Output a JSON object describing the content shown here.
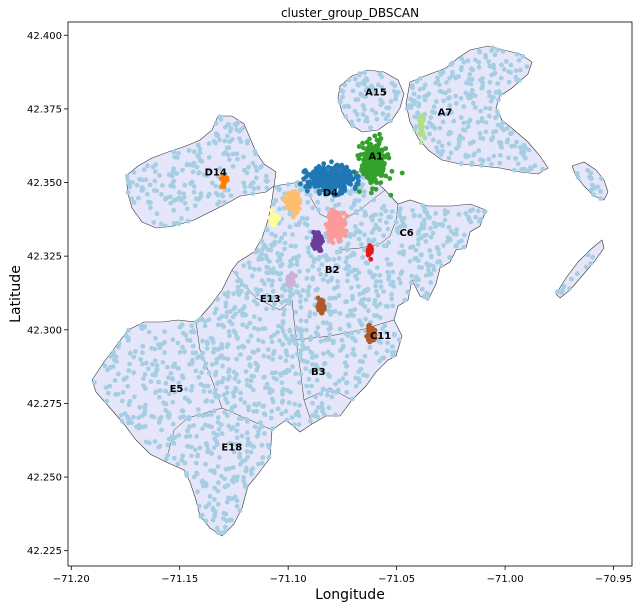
{
  "chart_data": {
    "type": "scatter",
    "title": "cluster_group_DBSCAN",
    "xlabel": "Longitude",
    "ylabel": "Latitude",
    "xlim": [
      -71.2015,
      -70.9415
    ],
    "ylim": [
      42.2198,
      42.4045
    ],
    "x_ticks": [
      -71.2,
      -71.15,
      -71.1,
      -71.05,
      -71.0,
      -70.95
    ],
    "x_tick_labels": [
      "−71.20",
      "−71.15",
      "−71.10",
      "−71.05",
      "−71.00",
      "−70.95"
    ],
    "y_ticks": [
      42.225,
      42.25,
      42.275,
      42.3,
      42.325,
      42.35,
      42.375,
      42.4
    ],
    "y_tick_labels": [
      "42.225",
      "42.250",
      "42.275",
      "42.300",
      "42.325",
      "42.350",
      "42.375",
      "42.400"
    ],
    "grid": false,
    "background_color": "#a6cee3",
    "district_fill": "#e6e6fa",
    "district_edge": "#333333",
    "district_labels": [
      {
        "name": "A15",
        "lon": -71.0595,
        "lat": 42.3795
      },
      {
        "name": "A7",
        "lon": -71.0277,
        "lat": 42.3727
      },
      {
        "name": "A1",
        "lon": -71.0596,
        "lat": 42.3578
      },
      {
        "name": "D14",
        "lon": -71.1334,
        "lat": 42.3524
      },
      {
        "name": "D4",
        "lon": -71.0805,
        "lat": 42.3455
      },
      {
        "name": "C6",
        "lon": -71.0454,
        "lat": 42.3319
      },
      {
        "name": "B2",
        "lon": -71.0797,
        "lat": 42.3193
      },
      {
        "name": "E13",
        "lon": -71.1083,
        "lat": 42.3095
      },
      {
        "name": "C11",
        "lon": -71.0574,
        "lat": 42.2968
      },
      {
        "name": "B3",
        "lon": -71.0861,
        "lat": 42.2847
      },
      {
        "name": "E5",
        "lon": -71.1515,
        "lat": 42.2789
      },
      {
        "name": "E18",
        "lon": -71.126,
        "lat": 42.259
      }
    ],
    "clusters": [
      {
        "id": "A1",
        "color": "#33a02c",
        "center": [
          -71.0604,
          42.3565
        ],
        "spread": [
          0.0055,
          0.0065
        ],
        "count": 260
      },
      {
        "id": "D4",
        "color": "#1f78b4",
        "center": [
          -71.081,
          42.351
        ],
        "spread": [
          0.0095,
          0.004
        ],
        "count": 300
      },
      {
        "id": "pink",
        "color": "#fb9a99",
        "center": [
          -71.078,
          42.3355
        ],
        "spread": [
          0.0038,
          0.004
        ],
        "count": 140
      },
      {
        "id": "peach",
        "color": "#fdbf6f",
        "center": [
          -71.098,
          42.3435
        ],
        "spread": [
          0.003,
          0.0032
        ],
        "count": 90
      },
      {
        "id": "purple",
        "color": "#6a3d9a",
        "center": [
          -71.0865,
          42.3305
        ],
        "spread": [
          0.0018,
          0.003
        ],
        "count": 70
      },
      {
        "id": "yellow",
        "color": "#ffff99",
        "center": [
          -71.1065,
          42.3375
        ],
        "spread": [
          0.0018,
          0.0018
        ],
        "count": 40
      },
      {
        "id": "lavender",
        "color": "#cab2d6",
        "center": [
          -71.099,
          42.317
        ],
        "spread": [
          0.0018,
          0.0018
        ],
        "count": 40
      },
      {
        "id": "brown1",
        "color": "#b15928",
        "center": [
          -71.085,
          42.308
        ],
        "spread": [
          0.0015,
          0.0018
        ],
        "count": 45
      },
      {
        "id": "brown2",
        "color": "#b15928",
        "center": [
          -71.062,
          42.2985
        ],
        "spread": [
          0.0018,
          0.002
        ],
        "count": 55
      },
      {
        "id": "red",
        "color": "#e31a1c",
        "center": [
          -71.0625,
          42.3265
        ],
        "spread": [
          0.001,
          0.0018
        ],
        "count": 25
      },
      {
        "id": "orange",
        "color": "#ff7f00",
        "center": [
          -71.1295,
          42.351
        ],
        "spread": [
          0.0012,
          0.0018
        ],
        "count": 25
      },
      {
        "id": "lightgreen",
        "color": "#b2df8a",
        "center": [
          -71.0385,
          42.369
        ],
        "spread": [
          0.001,
          0.003
        ],
        "count": 30
      }
    ]
  }
}
